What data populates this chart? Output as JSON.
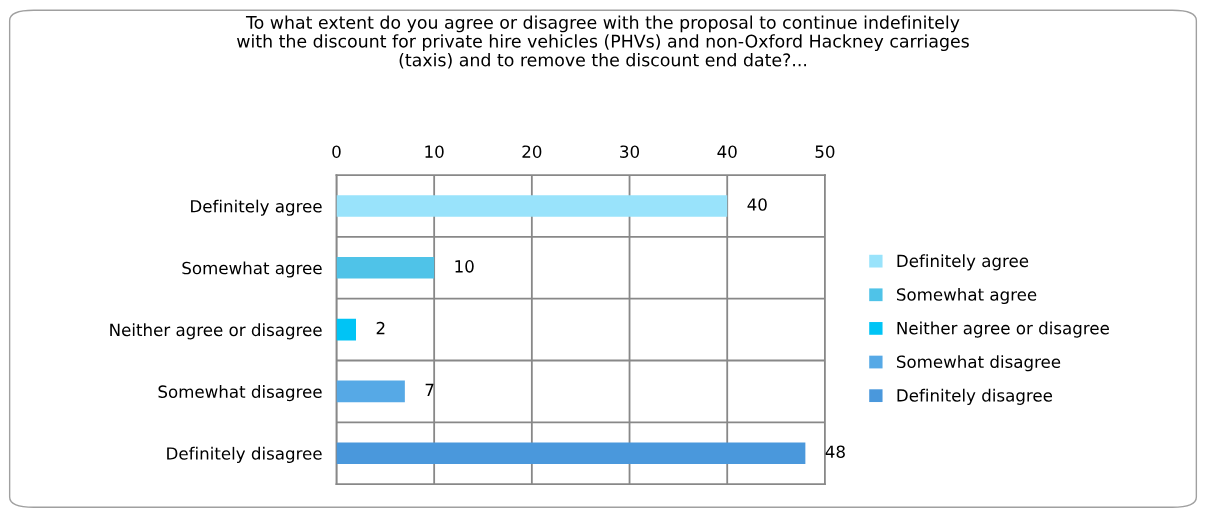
{
  "chart_data": {
    "type": "bar",
    "orientation": "horizontal",
    "stacked": true,
    "title": "To what extent do you agree or disagree with the proposal to continue indefinitely\nwith the discount for private hire vehicles (PHVs) and non-Oxford Hackney carriages\n(taxis) and to remove the discount end date?...",
    "categories": [
      "Definitely agree",
      "Somewhat agree",
      "Neither agree or disagree",
      "Somewhat disagree",
      "Definitely disagree"
    ],
    "series": [
      {
        "name": "Definitely agree",
        "color": "#99e3fb",
        "values": [
          40,
          null,
          null,
          null,
          null
        ]
      },
      {
        "name": "Somewhat agree",
        "color": "#4fc3e8",
        "values": [
          null,
          10,
          null,
          null,
          null
        ]
      },
      {
        "name": "Neither agree or disagree",
        "color": "#00c4f5",
        "values": [
          null,
          null,
          2,
          null,
          null
        ]
      },
      {
        "name": "Somewhat disagree",
        "color": "#56a9e6",
        "values": [
          null,
          null,
          null,
          7,
          null
        ]
      },
      {
        "name": "Definitely disagree",
        "color": "#4a98dc",
        "values": [
          null,
          null,
          null,
          null,
          48
        ]
      }
    ],
    "xlim": [
      0,
      50
    ],
    "xticks": [
      0,
      10,
      20,
      30,
      40,
      50
    ],
    "grid": true,
    "legend": "right",
    "data_labels": true
  }
}
